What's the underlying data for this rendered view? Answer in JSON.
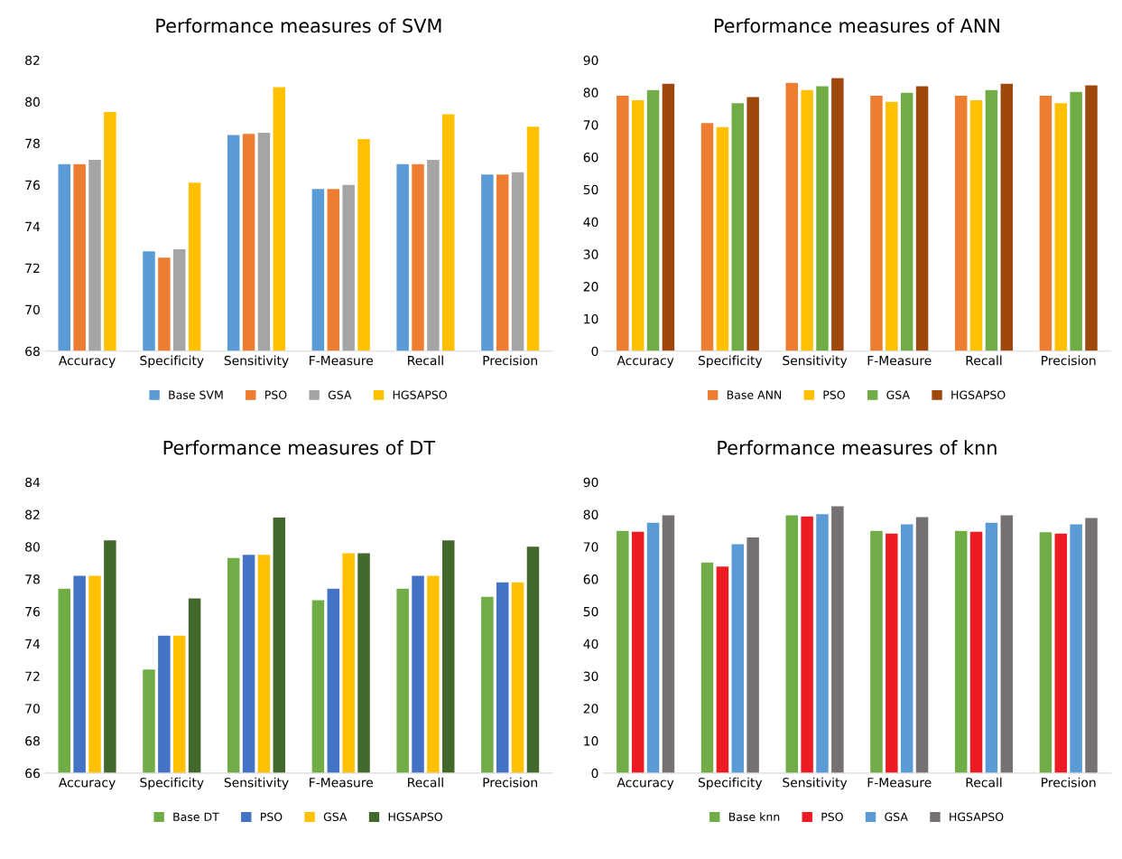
{
  "chart_data": [
    {
      "type": "bar",
      "title": "Performance measures of SVM",
      "categories": [
        "Accuracy",
        "Specificity",
        "Sensitivity",
        "F-Measure",
        "Recall",
        "Precision"
      ],
      "ylim": [
        68,
        82
      ],
      "yticks": [
        68,
        70,
        72,
        74,
        76,
        78,
        80,
        82
      ],
      "grid": false,
      "legend": "bottom",
      "series": [
        {
          "name": "Base SVM",
          "color": "#5b9bd5",
          "values": [
            77.0,
            72.8,
            78.4,
            75.8,
            77.0,
            76.5
          ]
        },
        {
          "name": "PSO",
          "color": "#ed7d31",
          "values": [
            77.0,
            72.5,
            78.45,
            75.8,
            77.0,
            76.5
          ]
        },
        {
          "name": "GSA",
          "color": "#a5a5a5",
          "values": [
            77.2,
            72.9,
            78.5,
            76.0,
            77.2,
            76.6
          ]
        },
        {
          "name": "HGSAPSO",
          "color": "#ffc000",
          "values": [
            79.5,
            76.1,
            80.7,
            78.2,
            79.4,
            78.8
          ]
        }
      ]
    },
    {
      "type": "bar",
      "title": "Performance measures of ANN",
      "categories": [
        "Accuracy",
        "Specificity",
        "Sensitivity",
        "F-Measure",
        "Recall",
        "Precision"
      ],
      "ylim": [
        0,
        90
      ],
      "yticks": [
        0,
        10,
        20,
        30,
        40,
        50,
        60,
        70,
        80,
        90
      ],
      "grid": false,
      "legend": "bottom",
      "series": [
        {
          "name": "Base ANN",
          "color": "#ed7d31",
          "values": [
            79.0,
            70.5,
            83.0,
            79.0,
            79.0,
            79.0
          ]
        },
        {
          "name": "PSO",
          "color": "#ffc000",
          "values": [
            77.6,
            69.3,
            80.7,
            77.1,
            77.6,
            76.7
          ]
        },
        {
          "name": "GSA",
          "color": "#70ad47",
          "values": [
            80.7,
            76.7,
            81.9,
            79.9,
            80.7,
            80.2
          ]
        },
        {
          "name": "HGSAPSO",
          "color": "#9e480e",
          "values": [
            82.7,
            78.6,
            84.4,
            81.9,
            82.7,
            82.2
          ]
        }
      ]
    },
    {
      "type": "bar",
      "title": "Performance measures of DT",
      "categories": [
        "Accuracy",
        "Specificity",
        "Sensitivity",
        "F-Measure",
        "Recall",
        "Precision"
      ],
      "ylim": [
        66,
        84
      ],
      "yticks": [
        66,
        68,
        70,
        72,
        74,
        76,
        78,
        80,
        82,
        84
      ],
      "grid": false,
      "legend": "bottom",
      "series": [
        {
          "name": "Base DT",
          "color": "#70ad47",
          "values": [
            77.4,
            72.4,
            79.3,
            76.7,
            77.4,
            76.9
          ]
        },
        {
          "name": "PSO",
          "color": "#4472c4",
          "values": [
            78.2,
            74.5,
            79.5,
            77.4,
            78.2,
            77.8
          ]
        },
        {
          "name": "GSA",
          "color": "#ffc000",
          "values": [
            78.2,
            74.5,
            79.5,
            79.6,
            78.2,
            77.8
          ]
        },
        {
          "name": "HGSAPSO",
          "color": "#43682b",
          "values": [
            80.4,
            76.8,
            81.8,
            79.6,
            80.4,
            80.0
          ]
        }
      ]
    },
    {
      "type": "bar",
      "title": "Performance measures of knn",
      "categories": [
        "Accuracy",
        "Specificity",
        "Sensitivity",
        "F-Measure",
        "Recall",
        "Precision"
      ],
      "ylim": [
        0,
        90
      ],
      "yticks": [
        0,
        10,
        20,
        30,
        40,
        50,
        60,
        70,
        80,
        90
      ],
      "grid": false,
      "legend": "bottom",
      "series": [
        {
          "name": "Base knn",
          "color": "#70ad47",
          "values": [
            74.9,
            65.1,
            79.7,
            74.9,
            74.9,
            74.5
          ]
        },
        {
          "name": "PSO",
          "color": "#ed1c24",
          "values": [
            74.6,
            63.9,
            79.4,
            74.1,
            74.6,
            74.1
          ]
        },
        {
          "name": "GSA",
          "color": "#5b9bd5",
          "values": [
            77.4,
            70.8,
            80.1,
            76.9,
            77.4,
            76.9
          ]
        },
        {
          "name": "HGSAPSO",
          "color": "#767171",
          "values": [
            79.7,
            72.9,
            82.5,
            79.2,
            79.7,
            78.9
          ]
        }
      ]
    }
  ]
}
